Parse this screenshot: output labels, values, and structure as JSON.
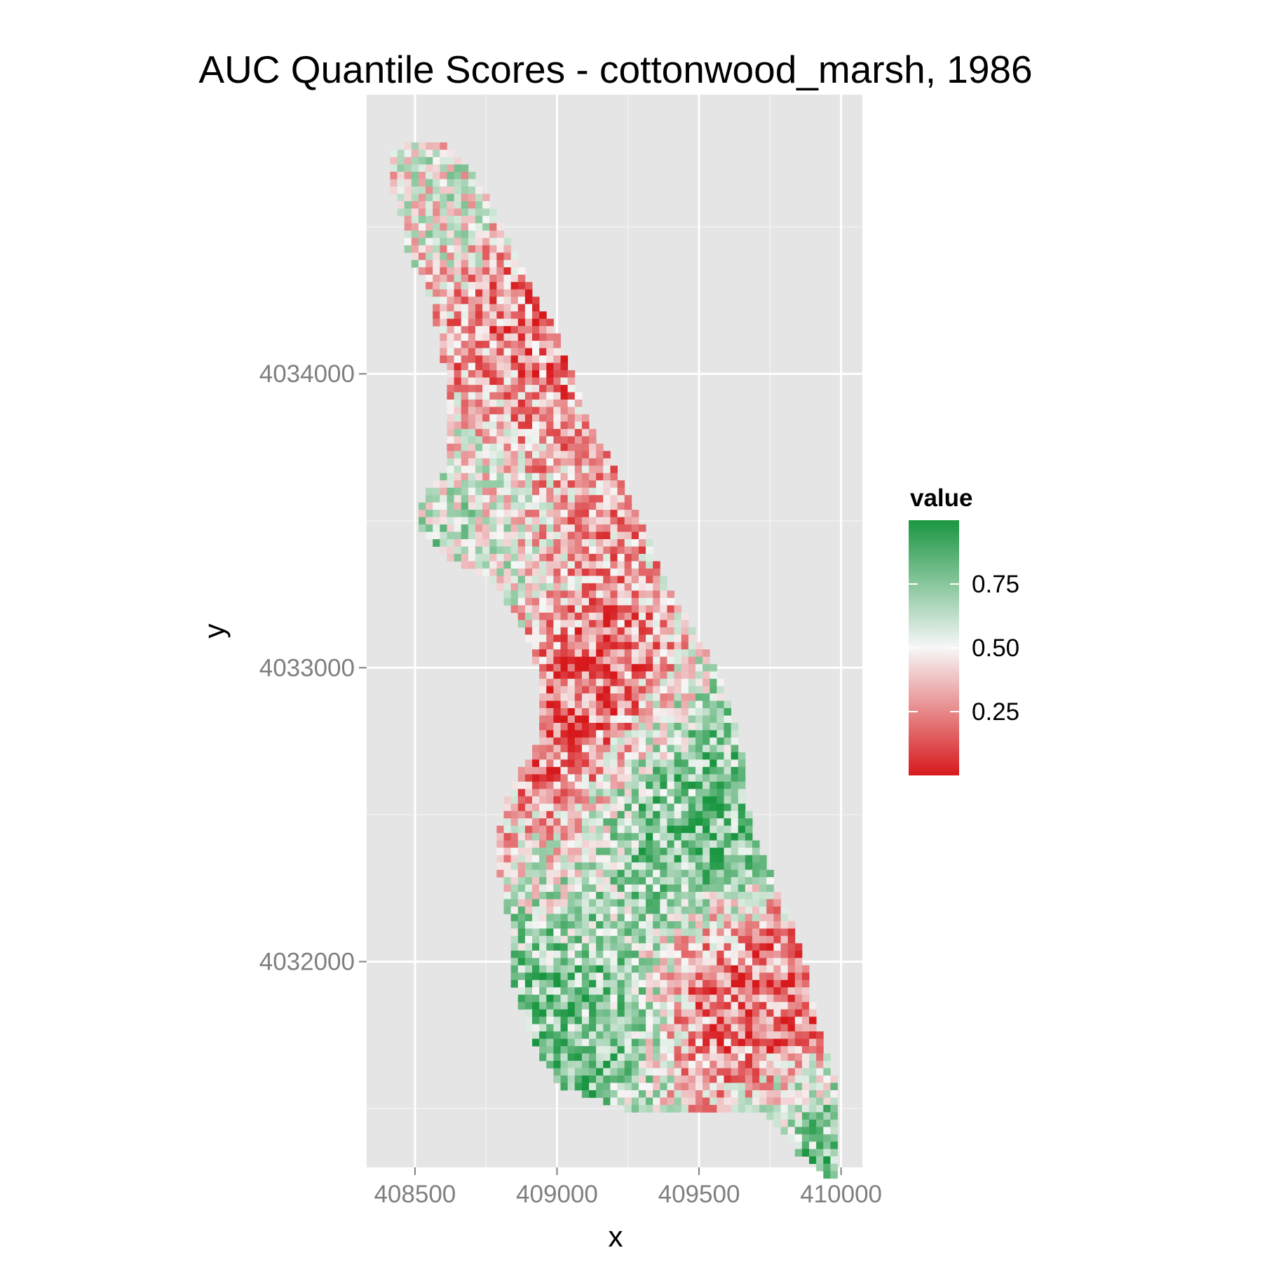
{
  "chart_data": {
    "type": "heatmap",
    "title": "AUC Quantile Scores - cottonwood_marsh, 1986",
    "xlabel": "x",
    "ylabel": "y",
    "xlim": [
      408330,
      410075
    ],
    "ylim": [
      4031300,
      4034950
    ],
    "x_ticks": [
      408500,
      409000,
      409500,
      410000
    ],
    "x_tick_labels": [
      "408500",
      "409000",
      "409500",
      "410000"
    ],
    "y_ticks": [
      4032000,
      4033000,
      4034000
    ],
    "y_tick_labels": [
      "4032000",
      "4033000",
      "4034000"
    ],
    "x_minor_ticks": [
      408750,
      409250,
      409750
    ],
    "y_minor_ticks": [
      4031500,
      4032500,
      4033500,
      4034500
    ],
    "grid": true,
    "cell_size": 25,
    "value_range": [
      0,
      1
    ],
    "colors": {
      "low": "#d7191c",
      "mid": "#f7f7f7",
      "high": "#1a9641",
      "panel": "#e5e5e5",
      "grid": "#ffffff"
    },
    "legend": {
      "title": "value",
      "position": "right",
      "breaks": [
        0.25,
        0.5,
        0.75
      ],
      "labels": [
        "0.25",
        "0.50",
        "0.75"
      ]
    },
    "regions": [
      {
        "name": "northern strip, mixed",
        "center": [
          408550,
          4034600
        ],
        "mean_value": 0.55
      },
      {
        "name": "upper red band",
        "center": [
          408950,
          4034150
        ],
        "mean_value": 0.2
      },
      {
        "name": "upper red patch",
        "center": [
          408900,
          4033500
        ],
        "mean_value": 0.12
      },
      {
        "name": "green spot",
        "center": [
          408760,
          4033450
        ],
        "mean_value": 0.9
      },
      {
        "name": "middle red patch",
        "center": [
          409120,
          4032900
        ],
        "mean_value": 0.12
      },
      {
        "name": "green strip along east edge",
        "center": [
          409550,
          4032700
        ],
        "mean_value": 0.75
      },
      {
        "name": "green patch",
        "center": [
          409500,
          4032450
        ],
        "mean_value": 0.92
      },
      {
        "name": "western green zone",
        "center": [
          409050,
          4031900
        ],
        "mean_value": 0.82
      },
      {
        "name": "southwest green edge",
        "center": [
          408950,
          4031600
        ],
        "mean_value": 0.9
      },
      {
        "name": "south-east red zone",
        "center": [
          409700,
          4031900
        ],
        "mean_value": 0.15
      },
      {
        "name": "southern tail, green",
        "center": [
          409960,
          4031300
        ],
        "mean_value": 0.85
      }
    ]
  }
}
